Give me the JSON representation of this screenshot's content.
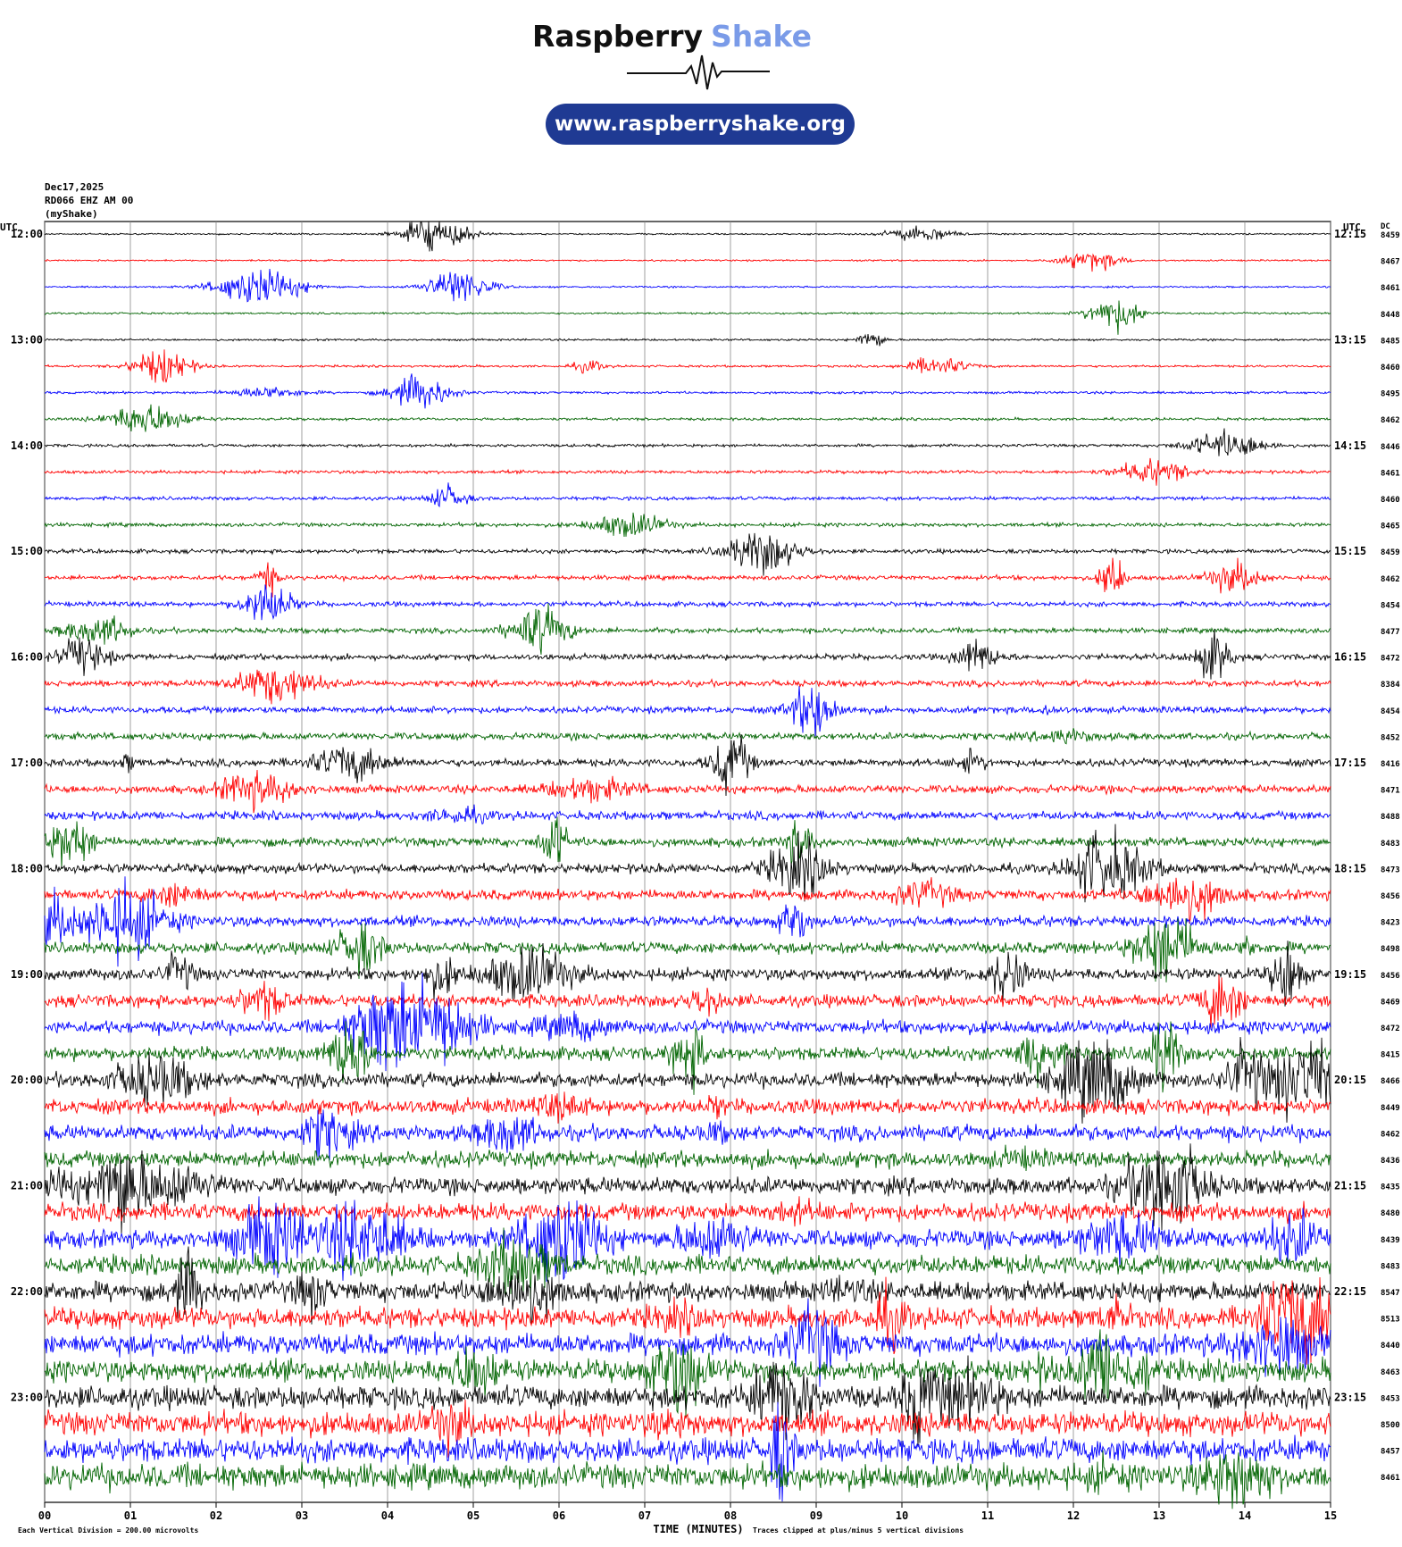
{
  "header": {
    "brand_1": "Raspberry",
    "brand_2": "Shake",
    "url": "www.raspberryshake.org"
  },
  "info": [
    "Dec17,2025",
    "RD066 EHZ AM 00",
    "(myShake)"
  ],
  "utc_left": "UTC",
  "utc_right": "UTC",
  "dc_header": "DC",
  "left_labels": [
    "12:00",
    "13:00",
    "14:00",
    "15:00",
    "16:00",
    "17:00",
    "18:00",
    "19:00",
    "20:00",
    "21:00",
    "22:00",
    "23:00"
  ],
  "right_labels": [
    "12:15",
    "13:15",
    "14:15",
    "15:15",
    "16:15",
    "17:15",
    "18:15",
    "19:15",
    "20:15",
    "21:15",
    "22:15",
    "23:15"
  ],
  "dc_values": [
    8459,
    8467,
    8461,
    8448,
    8485,
    8460,
    8495,
    8462,
    8446,
    8461,
    8460,
    8465,
    8459,
    8462,
    8454,
    8477,
    8472,
    8384,
    8454,
    8452,
    8416,
    8471,
    8488,
    8483,
    8473,
    8456,
    8423,
    8498,
    8456,
    8469,
    8472,
    8415,
    8466,
    8449,
    8462,
    8436,
    8435,
    8480,
    8439,
    8483,
    8547,
    8513,
    8440,
    8463,
    8453,
    8500,
    8457,
    8461
  ],
  "x_labels": [
    "00",
    "01",
    "02",
    "03",
    "04",
    "05",
    "06",
    "07",
    "08",
    "09",
    "10",
    "11",
    "12",
    "13",
    "14",
    "15"
  ],
  "x_title": "TIME (MINUTES)",
  "footer_left": "Each Vertical Division =  200.00 microvolts",
  "footer_right": "Traces clipped at plus/minus 5 vertical divisions",
  "trace_colors": [
    "#000000",
    "#ff0000",
    "#0000ff",
    "#006400"
  ]
}
